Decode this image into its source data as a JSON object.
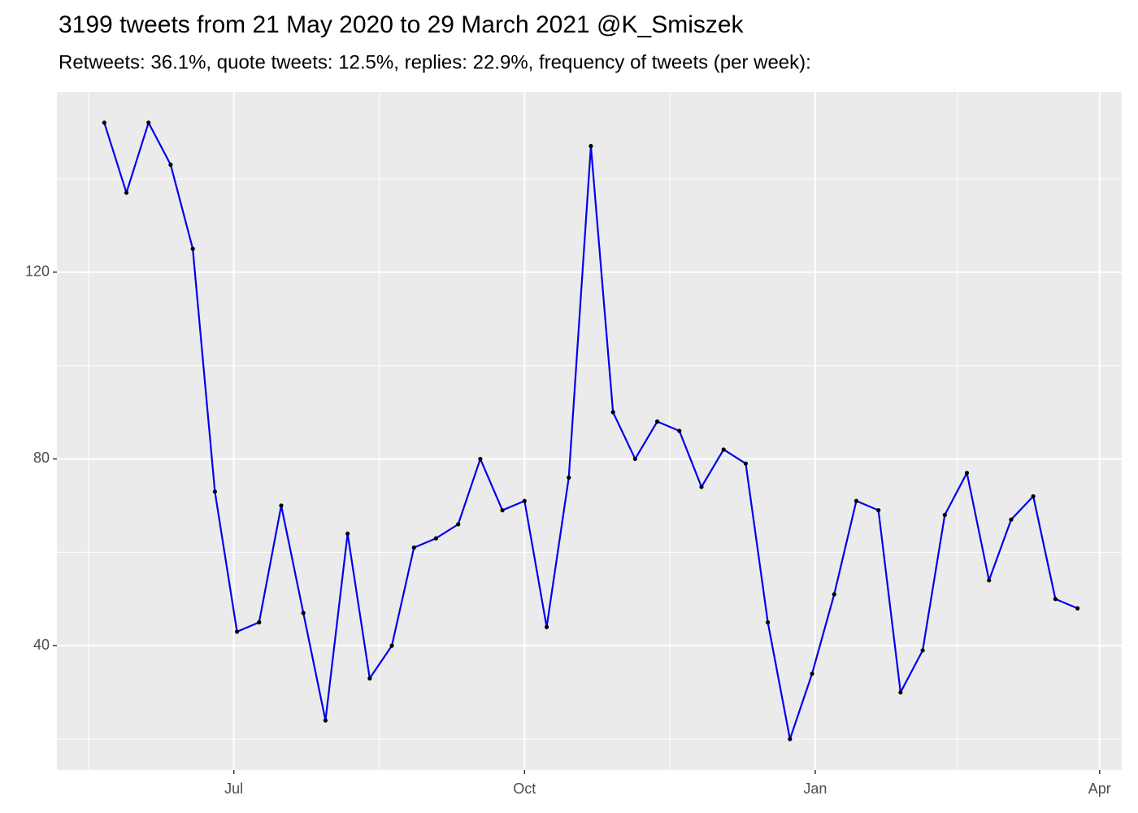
{
  "chart_data": {
    "type": "line",
    "title": "3199 tweets from 21 May 2020 to 29 March 2021 @K_Smiszek",
    "subtitle": "Retweets: 36.1%, quote tweets: 12.5%, replies: 22.9%, frequency of tweets (per week):",
    "x": [
      "2020-05-21",
      "2020-05-28",
      "2020-06-04",
      "2020-06-11",
      "2020-06-18",
      "2020-06-25",
      "2020-07-02",
      "2020-07-09",
      "2020-07-16",
      "2020-07-23",
      "2020-07-30",
      "2020-08-06",
      "2020-08-13",
      "2020-08-20",
      "2020-08-27",
      "2020-09-03",
      "2020-09-10",
      "2020-09-17",
      "2020-09-24",
      "2020-10-01",
      "2020-10-08",
      "2020-10-15",
      "2020-10-22",
      "2020-10-29",
      "2020-11-05",
      "2020-11-12",
      "2020-11-19",
      "2020-11-26",
      "2020-12-03",
      "2020-12-10",
      "2020-12-17",
      "2020-12-24",
      "2020-12-31",
      "2021-01-07",
      "2021-01-14",
      "2021-01-21",
      "2021-01-28",
      "2021-02-04",
      "2021-02-11",
      "2021-02-18",
      "2021-02-25",
      "2021-03-04",
      "2021-03-11",
      "2021-03-18",
      "2021-03-25"
    ],
    "values": [
      152,
      137,
      152,
      143,
      125,
      73,
      43,
      45,
      70,
      47,
      24,
      64,
      33,
      40,
      61,
      63,
      66,
      80,
      69,
      71,
      44,
      76,
      147,
      90,
      80,
      88,
      86,
      74,
      82,
      79,
      45,
      20,
      34,
      51,
      71,
      69,
      30,
      39,
      68,
      77,
      54,
      67,
      72,
      50,
      48
    ],
    "color": "#0000ee",
    "point_color": "#000000",
    "xlim": [
      "2020-05-06",
      "2021-04-08"
    ],
    "xticks": [
      {
        "value": "2020-07-01",
        "label": "Jul"
      },
      {
        "value": "2020-10-01",
        "label": "Oct"
      },
      {
        "value": "2021-01-01",
        "label": "Jan"
      },
      {
        "value": "2021-04-01",
        "label": "Apr"
      }
    ],
    "ylim": [
      13.4,
      158.6
    ],
    "yticks": [
      40,
      80,
      120
    ],
    "grid": true
  }
}
